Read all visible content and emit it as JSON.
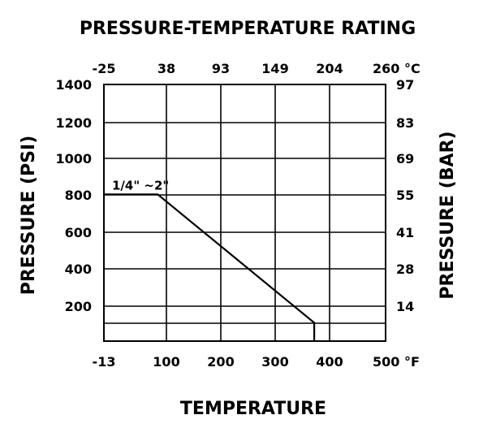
{
  "chart_data": {
    "type": "line",
    "title": "PRESSURE-TEMPERATURE RATING",
    "xlabel": "TEMPERATURE",
    "ylabel_left": "PRESSURE (PSI)",
    "ylabel_right": "PRESSURE (BAR)",
    "x_bottom_ticks": [
      "-13",
      "100",
      "200",
      "300",
      "400",
      "500"
    ],
    "x_bottom_unit": "°F",
    "x_top_ticks": [
      "-25",
      "38",
      "93",
      "149",
      "204",
      "260"
    ],
    "x_top_unit": "°C",
    "y_left_ticks": [
      "1400",
      "1200",
      "1000",
      "800",
      "600",
      "400",
      "200"
    ],
    "y_right_ticks": [
      "97",
      "83",
      "69",
      "55",
      "41",
      "28",
      "14"
    ],
    "xlim": [
      -13,
      500
    ],
    "ylim": [
      0,
      1400
    ],
    "grid": true,
    "series": [
      {
        "name": "1/4\" ~2\"",
        "x": [
          -13,
          85,
          370,
          370
        ],
        "y": [
          800,
          800,
          100,
          0
        ]
      }
    ]
  }
}
